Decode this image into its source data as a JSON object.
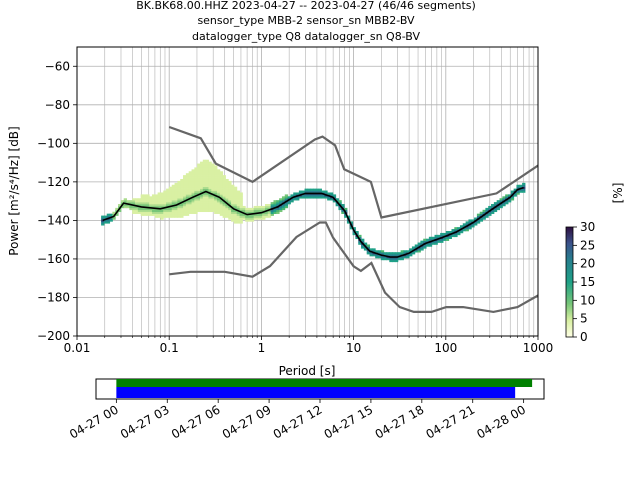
{
  "header": {
    "line1": "BK.BK68.00.HHZ   2023-04-27 -- 2023-04-27  (46/46 segments)",
    "line2": "sensor_type MBB-2 sensor_sn MBB2-BV",
    "line3": "datalogger_type Q8 datalogger_sn Q8-BV"
  },
  "chart_data": [
    {
      "type": "heatmap",
      "title": "BK.BK68.00.HHZ   2023-04-27 -- 2023-04-27  (46/46 segments)",
      "xlabel": "Period [s]",
      "ylabel": "Power [m²/s⁴/Hz] [dB]",
      "xscale": "log",
      "xlim": [
        0.01,
        1000
      ],
      "ylim": [
        -200,
        -50
      ],
      "x_ticks": [
        "0.01",
        "0.1",
        "1",
        "10",
        "100",
        "1000"
      ],
      "y_ticks": [
        "−200",
        "−180",
        "−160",
        "−140",
        "−120",
        "−100",
        "−80",
        "−60"
      ],
      "grid": true,
      "colorbar": {
        "label": "[%]",
        "range": [
          0,
          30
        ],
        "ticks": [
          "0",
          "5",
          "10",
          "15",
          "20",
          "25",
          "30"
        ]
      },
      "mode_curve": {
        "period": [
          0.019,
          0.025,
          0.032,
          0.05,
          0.08,
          0.12,
          0.18,
          0.25,
          0.35,
          0.5,
          0.7,
          1.0,
          1.5,
          2.2,
          3.0,
          4.5,
          6.0,
          8.0,
          10,
          12,
          15,
          20,
          25,
          30,
          40,
          60,
          90,
          130,
          200,
          300,
          400,
          500,
          600,
          700
        ],
        "power": [
          -140,
          -138,
          -131,
          -133,
          -134,
          -132,
          -128,
          -125,
          -128,
          -134,
          -137,
          -136,
          -133,
          -128,
          -126,
          -126,
          -128,
          -135,
          -145,
          -151,
          -156,
          -158,
          -159,
          -159,
          -157,
          -152,
          -149,
          -146,
          -141,
          -135,
          -131,
          -128,
          -124,
          -123
        ]
      },
      "nhnm": {
        "period": [
          0.1,
          0.22,
          0.32,
          0.8,
          3.8,
          4.6,
          6.3,
          7.9,
          15.4,
          20,
          354.8,
          1000
        ],
        "power": [
          -91.5,
          -97.4,
          -110.5,
          -120,
          -98,
          -96.5,
          -101,
          -113.5,
          -120,
          -138.5,
          -126,
          -111.5
        ]
      },
      "nlnm": {
        "period": [
          0.1,
          0.17,
          0.4,
          0.8,
          1.24,
          2.4,
          4.3,
          5.0,
          6.0,
          10,
          12,
          15.6,
          21.9,
          31.6,
          45,
          70,
          101,
          154,
          328,
          600,
          1000
        ],
        "power": [
          -168,
          -166.7,
          -166.7,
          -169.2,
          -163.7,
          -148.6,
          -141.1,
          -141.1,
          -149,
          -163.8,
          -166.2,
          -162.1,
          -177.5,
          -185,
          -187.5,
          -187.5,
          -185,
          -185,
          -187.5,
          -185,
          -179
        ]
      }
    },
    {
      "type": "timeline",
      "x_ticks": [
        "04-27 00",
        "04-27 03",
        "04-27 06",
        "04-27 09",
        "04-27 12",
        "04-27 15",
        "04-27 18",
        "04-27 21",
        "04-28 00"
      ],
      "xlim_hours": [
        -1.2,
        25.2
      ],
      "series": [
        {
          "color": "#008000",
          "start_hour": 0,
          "end_hour": 24.5
        },
        {
          "color": "#0000ff",
          "start_hour": 0,
          "end_hour": 23.5
        }
      ]
    }
  ]
}
